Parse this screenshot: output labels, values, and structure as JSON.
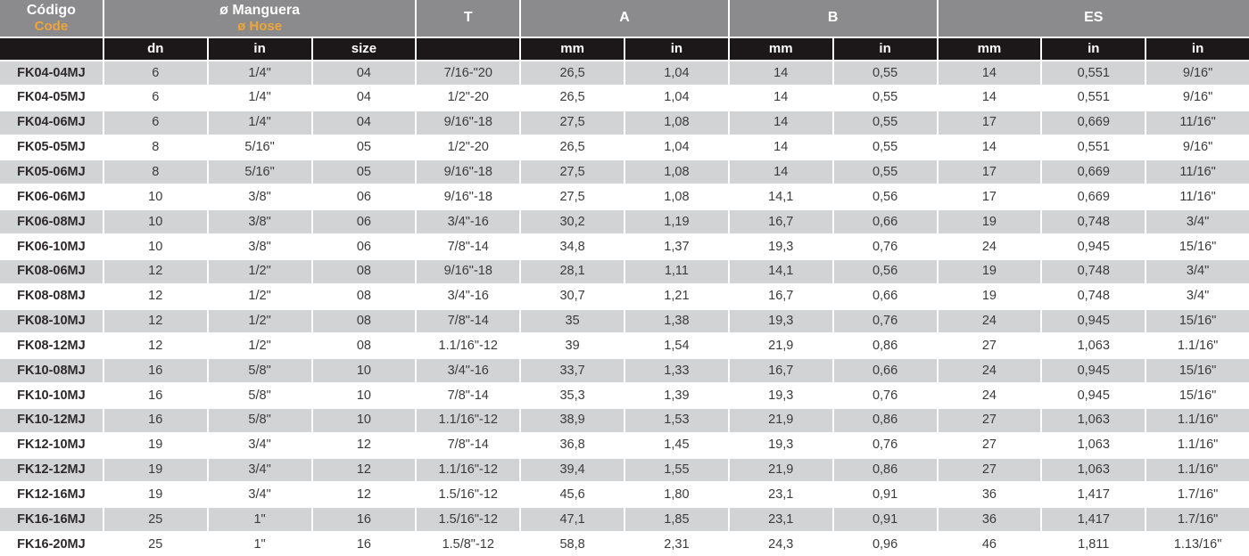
{
  "colors": {
    "header_bg": "#8B8B8D",
    "subheader_bg": "#1C1819",
    "row_alt_bg": "#D2D3D5",
    "row_bg": "#FFFFFF",
    "accent_orange": "#EFA436",
    "header_text": "#FFFFFF",
    "data_text": "#3B3B3D"
  },
  "table": {
    "header_groups": [
      {
        "line1": "Código",
        "line2": "Code",
        "span": 1
      },
      {
        "line1": "ø Manguera",
        "line2": "ø Hose",
        "span": 3
      },
      {
        "line1": "T",
        "line2": "",
        "span": 1
      },
      {
        "line1": "A",
        "line2": "",
        "span": 2
      },
      {
        "line1": "B",
        "line2": "",
        "span": 2
      },
      {
        "line1": "ES",
        "line2": "",
        "span": 3
      }
    ],
    "subheaders": [
      "",
      "dn",
      "in",
      "size",
      "",
      "mm",
      "in",
      "mm",
      "in",
      "mm",
      "in",
      "in"
    ],
    "rows": [
      [
        "FK04-04MJ",
        "6",
        "1/4\"",
        "04",
        "7/16-\"20",
        "26,5",
        "1,04",
        "14",
        "0,55",
        "14",
        "0,551",
        "9/16\""
      ],
      [
        "FK04-05MJ",
        "6",
        "1/4\"",
        "04",
        "1/2\"-20",
        "26,5",
        "1,04",
        "14",
        "0,55",
        "14",
        "0,551",
        "9/16\""
      ],
      [
        "FK04-06MJ",
        "6",
        "1/4\"",
        "04",
        "9/16\"-18",
        "27,5",
        "1,08",
        "14",
        "0,55",
        "17",
        "0,669",
        "11/16\""
      ],
      [
        "FK05-05MJ",
        "8",
        "5/16\"",
        "05",
        "1/2\"-20",
        "26,5",
        "1,04",
        "14",
        "0,55",
        "14",
        "0,551",
        "9/16\""
      ],
      [
        "FK05-06MJ",
        "8",
        "5/16\"",
        "05",
        "9/16\"-18",
        "27,5",
        "1,08",
        "14",
        "0,55",
        "17",
        "0,669",
        "11/16\""
      ],
      [
        "FK06-06MJ",
        "10",
        "3/8\"",
        "06",
        "9/16\"-18",
        "27,5",
        "1,08",
        "14,1",
        "0,56",
        "17",
        "0,669",
        "11/16\""
      ],
      [
        "FK06-08MJ",
        "10",
        "3/8\"",
        "06",
        "3/4\"-16",
        "30,2",
        "1,19",
        "16,7",
        "0,66",
        "19",
        "0,748",
        "3/4\""
      ],
      [
        "FK06-10MJ",
        "10",
        "3/8\"",
        "06",
        "7/8\"-14",
        "34,8",
        "1,37",
        "19,3",
        "0,76",
        "24",
        "0,945",
        "15/16\""
      ],
      [
        "FK08-06MJ",
        "12",
        "1/2\"",
        "08",
        "9/16\"-18",
        "28,1",
        "1,11",
        "14,1",
        "0,56",
        "19",
        "0,748",
        "3/4\""
      ],
      [
        "FK08-08MJ",
        "12",
        "1/2\"",
        "08",
        "3/4\"-16",
        "30,7",
        "1,21",
        "16,7",
        "0,66",
        "19",
        "0,748",
        "3/4\""
      ],
      [
        "FK08-10MJ",
        "12",
        "1/2\"",
        "08",
        "7/8\"-14",
        "35",
        "1,38",
        "19,3",
        "0,76",
        "24",
        "0,945",
        "15/16\""
      ],
      [
        "FK08-12MJ",
        "12",
        "1/2\"",
        "08",
        "1.1/16\"-12",
        "39",
        "1,54",
        "21,9",
        "0,86",
        "27",
        "1,063",
        "1.1/16\""
      ],
      [
        "FK10-08MJ",
        "16",
        "5/8\"",
        "10",
        "3/4\"-16",
        "33,7",
        "1,33",
        "16,7",
        "0,66",
        "24",
        "0,945",
        "15/16\""
      ],
      [
        "FK10-10MJ",
        "16",
        "5/8\"",
        "10",
        "7/8\"-14",
        "35,3",
        "1,39",
        "19,3",
        "0,76",
        "24",
        "0,945",
        "15/16\""
      ],
      [
        "FK10-12MJ",
        "16",
        "5/8\"",
        "10",
        "1.1/16\"-12",
        "38,9",
        "1,53",
        "21,9",
        "0,86",
        "27",
        "1,063",
        "1.1/16\""
      ],
      [
        "FK12-10MJ",
        "19",
        "3/4\"",
        "12",
        "7/8\"-14",
        "36,8",
        "1,45",
        "19,3",
        "0,76",
        "27",
        "1,063",
        "1.1/16\""
      ],
      [
        "FK12-12MJ",
        "19",
        "3/4\"",
        "12",
        "1.1/16\"-12",
        "39,4",
        "1,55",
        "21,9",
        "0,86",
        "27",
        "1,063",
        "1.1/16\""
      ],
      [
        "FK12-16MJ",
        "19",
        "3/4\"",
        "12",
        "1.5/16\"-12",
        "45,6",
        "1,80",
        "23,1",
        "0,91",
        "36",
        "1,417",
        "1.7/16\""
      ],
      [
        "FK16-16MJ",
        "25",
        "1\"",
        "16",
        "1.5/16\"-12",
        "47,1",
        "1,85",
        "23,1",
        "0,91",
        "36",
        "1,417",
        "1.7/16\""
      ],
      [
        "FK16-20MJ",
        "25",
        "1\"",
        "16",
        "1.5/8\"-12",
        "58,8",
        "2,31",
        "24,3",
        "0,96",
        "46",
        "1,811",
        "1.13/16\""
      ]
    ]
  }
}
